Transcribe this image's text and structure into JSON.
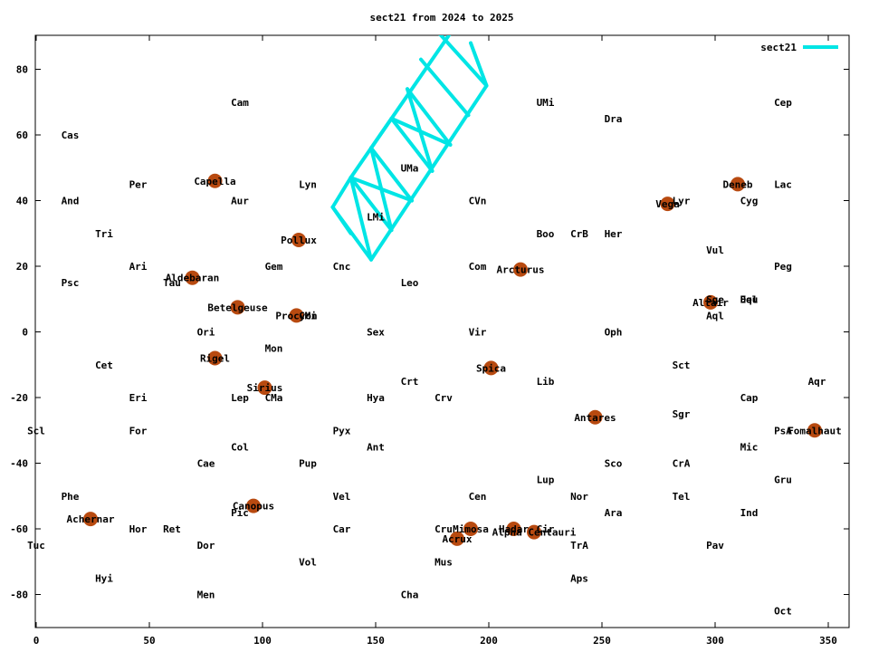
{
  "chart_data": {
    "type": "scatter",
    "title": "sect21 from 2024 to 2025",
    "xlabel": "",
    "ylabel": "",
    "xlim": [
      0,
      360
    ],
    "ylim": [
      -90,
      90
    ],
    "xticks": [
      0,
      50,
      100,
      150,
      200,
      250,
      300,
      350
    ],
    "yticks": [
      -80,
      -60,
      -40,
      -20,
      0,
      20,
      40,
      60,
      80
    ],
    "grid": false,
    "legend": {
      "position": "top-right",
      "entries": [
        "sect21"
      ]
    },
    "colors": {
      "path": "#00e5e5",
      "star": "#b84a10"
    },
    "constellations": [
      {
        "name": "Cas",
        "x": 15,
        "y": 60
      },
      {
        "name": "And",
        "x": 15,
        "y": 40
      },
      {
        "name": "Tri",
        "x": 30,
        "y": 30
      },
      {
        "name": "Psc",
        "x": 15,
        "y": 15
      },
      {
        "name": "Per",
        "x": 45,
        "y": 45
      },
      {
        "name": "Ari",
        "x": 45,
        "y": 20
      },
      {
        "name": "Tau",
        "x": 60,
        "y": 15
      },
      {
        "name": "Cet",
        "x": 30,
        "y": -10
      },
      {
        "name": "Eri",
        "x": 45,
        "y": -20
      },
      {
        "name": "For",
        "x": 45,
        "y": -30
      },
      {
        "name": "Scl",
        "x": 0,
        "y": -30
      },
      {
        "name": "Phe",
        "x": 15,
        "y": -50
      },
      {
        "name": "Tuc",
        "x": 0,
        "y": -65
      },
      {
        "name": "Hyi",
        "x": 30,
        "y": -75
      },
      {
        "name": "Hor",
        "x": 45,
        "y": -60
      },
      {
        "name": "Ret",
        "x": 60,
        "y": -60
      },
      {
        "name": "Dor",
        "x": 75,
        "y": -65
      },
      {
        "name": "Men",
        "x": 75,
        "y": -80
      },
      {
        "name": "Cae",
        "x": 75,
        "y": -40
      },
      {
        "name": "Col",
        "x": 90,
        "y": -35
      },
      {
        "name": "Pic",
        "x": 90,
        "y": -55
      },
      {
        "name": "Lep",
        "x": 90,
        "y": -20
      },
      {
        "name": "CMa",
        "x": 105,
        "y": -20
      },
      {
        "name": "Ori",
        "x": 75,
        "y": 0
      },
      {
        "name": "Mon",
        "x": 105,
        "y": -5
      },
      {
        "name": "Gem",
        "x": 105,
        "y": 20
      },
      {
        "name": "Aur",
        "x": 90,
        "y": 40
      },
      {
        "name": "Cam",
        "x": 90,
        "y": 70
      },
      {
        "name": "Lyn",
        "x": 120,
        "y": 45
      },
      {
        "name": "Cnc",
        "x": 135,
        "y": 20
      },
      {
        "name": "CMi",
        "x": 120,
        "y": 5
      },
      {
        "name": "Sex",
        "x": 150,
        "y": 0
      },
      {
        "name": "Pup",
        "x": 120,
        "y": -40
      },
      {
        "name": "Pyx",
        "x": 135,
        "y": -30
      },
      {
        "name": "Vel",
        "x": 135,
        "y": -50
      },
      {
        "name": "Car",
        "x": 135,
        "y": -60
      },
      {
        "name": "Vol",
        "x": 120,
        "y": -70
      },
      {
        "name": "Hya",
        "x": 150,
        "y": -20
      },
      {
        "name": "Ant",
        "x": 150,
        "y": -35
      },
      {
        "name": "LMi",
        "x": 150,
        "y": 35
      },
      {
        "name": "UMa",
        "x": 165,
        "y": 50
      },
      {
        "name": "Leo",
        "x": 165,
        "y": 15
      },
      {
        "name": "Crt",
        "x": 165,
        "y": -15
      },
      {
        "name": "Crv",
        "x": 180,
        "y": -20
      },
      {
        "name": "Cru",
        "x": 180,
        "y": -60
      },
      {
        "name": "Mus",
        "x": 180,
        "y": -70
      },
      {
        "name": "Cha",
        "x": 165,
        "y": -80
      },
      {
        "name": "CVn",
        "x": 195,
        "y": 40
      },
      {
        "name": "Com",
        "x": 195,
        "y": 20
      },
      {
        "name": "Vir",
        "x": 195,
        "y": 0
      },
      {
        "name": "Cen",
        "x": 195,
        "y": -50
      },
      {
        "name": "Cir",
        "x": 225,
        "y": -60
      },
      {
        "name": "UMi",
        "x": 225,
        "y": 70
      },
      {
        "name": "Boo",
        "x": 225,
        "y": 30
      },
      {
        "name": "Lib",
        "x": 225,
        "y": -15
      },
      {
        "name": "Lup",
        "x": 225,
        "y": -45
      },
      {
        "name": "CrB",
        "x": 240,
        "y": 30
      },
      {
        "name": "Nor",
        "x": 240,
        "y": -50
      },
      {
        "name": "TrA",
        "x": 240,
        "y": -65
      },
      {
        "name": "Aps",
        "x": 240,
        "y": -75
      },
      {
        "name": "Dra",
        "x": 255,
        "y": 65
      },
      {
        "name": "Her",
        "x": 255,
        "y": 30
      },
      {
        "name": "Oph",
        "x": 255,
        "y": 0
      },
      {
        "name": "Sco",
        "x": 255,
        "y": -40
      },
      {
        "name": "Ara",
        "x": 255,
        "y": -55
      },
      {
        "name": "Lyr",
        "x": 285,
        "y": 40
      },
      {
        "name": "Sct",
        "x": 285,
        "y": -10
      },
      {
        "name": "Sgr",
        "x": 285,
        "y": -25
      },
      {
        "name": "CrA",
        "x": 285,
        "y": -40
      },
      {
        "name": "Tel",
        "x": 285,
        "y": -50
      },
      {
        "name": "Pav",
        "x": 300,
        "y": -65
      },
      {
        "name": "Vul",
        "x": 300,
        "y": 25
      },
      {
        "name": "Sge",
        "x": 300,
        "y": 10
      },
      {
        "name": "Aql",
        "x": 300,
        "y": 5
      },
      {
        "name": "Cyg",
        "x": 315,
        "y": 40
      },
      {
        "name": "Del",
        "x": 315,
        "y": 10
      },
      {
        "name": "Equ",
        "x": 315,
        "y": 10
      },
      {
        "name": "Cap",
        "x": 315,
        "y": -20
      },
      {
        "name": "Mic",
        "x": 315,
        "y": -35
      },
      {
        "name": "Ind",
        "x": 315,
        "y": -55
      },
      {
        "name": "Cep",
        "x": 330,
        "y": 70
      },
      {
        "name": "Lac",
        "x": 330,
        "y": 45
      },
      {
        "name": "Peg",
        "x": 330,
        "y": 20
      },
      {
        "name": "PsA",
        "x": 330,
        "y": -30
      },
      {
        "name": "Gru",
        "x": 330,
        "y": -45
      },
      {
        "name": "Oct",
        "x": 330,
        "y": -85
      },
      {
        "name": "Aqr",
        "x": 345,
        "y": -15
      }
    ],
    "stars": [
      {
        "name": "Capella",
        "x": 79,
        "y": 46
      },
      {
        "name": "Aldebaran",
        "x": 69,
        "y": 16.5
      },
      {
        "name": "Betelgeuse",
        "x": 89,
        "y": 7.5
      },
      {
        "name": "Rigel",
        "x": 79,
        "y": -8
      },
      {
        "name": "Sirius",
        "x": 101,
        "y": -17
      },
      {
        "name": "Pollux",
        "x": 116,
        "y": 28
      },
      {
        "name": "Procyon",
        "x": 115,
        "y": 5
      },
      {
        "name": "Canopus",
        "x": 96,
        "y": -53
      },
      {
        "name": "Achernar",
        "x": 24,
        "y": -57
      },
      {
        "name": "Arcturus",
        "x": 214,
        "y": 19
      },
      {
        "name": "Spica",
        "x": 201,
        "y": -11
      },
      {
        "name": "Mimosa",
        "x": 192,
        "y": -60
      },
      {
        "name": "Acrux",
        "x": 186,
        "y": -63
      },
      {
        "name": "Hadar",
        "x": 211,
        "y": -60
      },
      {
        "name": "Alpha Centauri",
        "x": 220,
        "y": -61
      },
      {
        "name": "Antares",
        "x": 247,
        "y": -26
      },
      {
        "name": "Vega",
        "x": 279,
        "y": 39
      },
      {
        "name": "Deneb",
        "x": 310,
        "y": 45
      },
      {
        "name": "Altair",
        "x": 298,
        "y": 9
      },
      {
        "name": "Fomalhaut",
        "x": 344,
        "y": -30
      }
    ],
    "series": [
      {
        "name": "sect21",
        "segments": [
          [
            [
              131,
              38
            ],
            [
              148,
              22
            ],
            [
              199,
              75
            ],
            [
              192,
              88
            ]
          ],
          [
            [
              131,
              38
            ],
            [
              139,
              47
            ],
            [
              186,
              94
            ]
          ],
          [
            [
              139,
              47
            ],
            [
              148,
              22
            ]
          ],
          [
            [
              139,
              47
            ],
            [
              157,
              31
            ]
          ],
          [
            [
              139,
              47
            ],
            [
              166,
              40
            ]
          ],
          [
            [
              148,
              56
            ],
            [
              157,
              31
            ]
          ],
          [
            [
              148,
              56
            ],
            [
              166,
              40
            ]
          ],
          [
            [
              148,
              56
            ],
            [
              157,
              65
            ]
          ],
          [
            [
              157,
              65
            ],
            [
              175,
              49
            ]
          ],
          [
            [
              157,
              65
            ],
            [
              183,
              57
            ]
          ],
          [
            [
              164,
              74
            ],
            [
              183,
              57
            ]
          ],
          [
            [
              170,
              83
            ],
            [
              191,
              66
            ]
          ],
          [
            [
              178,
              91
            ],
            [
              199,
              75
            ]
          ],
          [
            [
              131,
              38
            ],
            [
              139,
              30
            ]
          ],
          [
            [
              164,
              74
            ],
            [
              175,
              49
            ]
          ]
        ]
      }
    ]
  }
}
